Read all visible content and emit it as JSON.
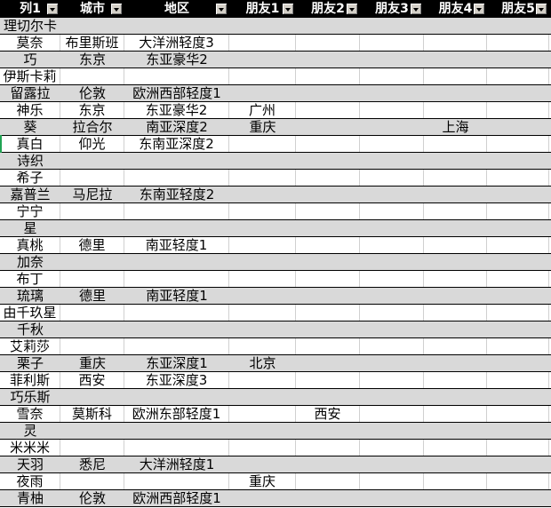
{
  "table": {
    "columns": [
      {
        "label": "列1"
      },
      {
        "label": "城市"
      },
      {
        "label": "地区"
      },
      {
        "label": "朋友1"
      },
      {
        "label": "朋友2"
      },
      {
        "label": "朋友3"
      },
      {
        "label": "朋友4"
      },
      {
        "label": "朋友5"
      }
    ],
    "rows": [
      {
        "cells": [
          "理切尔卡",
          "",
          "",
          "",
          "",
          "",
          "",
          ""
        ]
      },
      {
        "cells": [
          "莫奈",
          "布里斯班",
          "大洋洲轻度3",
          "",
          "",
          "",
          "",
          ""
        ]
      },
      {
        "cells": [
          "巧",
          "东京",
          "东亚豪华2",
          "",
          "",
          "",
          "",
          ""
        ]
      },
      {
        "cells": [
          "伊斯卡莉",
          "",
          "",
          "",
          "",
          "",
          "",
          ""
        ]
      },
      {
        "cells": [
          "留露拉",
          "伦敦",
          "欧洲西部轻度1",
          "",
          "",
          "",
          "",
          ""
        ]
      },
      {
        "cells": [
          "神乐",
          "东京",
          "东亚豪华2",
          "广州",
          "",
          "",
          "",
          ""
        ]
      },
      {
        "cells": [
          "葵",
          "拉合尔",
          "南亚深度2",
          "重庆",
          "",
          "",
          "上海",
          ""
        ]
      },
      {
        "cells": [
          "真白",
          "仰光",
          "东南亚深度2",
          "",
          "",
          "",
          "",
          ""
        ]
      },
      {
        "cells": [
          "诗织",
          "",
          "",
          "",
          "",
          "",
          "",
          ""
        ]
      },
      {
        "cells": [
          "希子",
          "",
          "",
          "",
          "",
          "",
          "",
          ""
        ]
      },
      {
        "cells": [
          "嘉普兰",
          "马尼拉",
          "东南亚轻度2",
          "",
          "",
          "",
          "",
          ""
        ]
      },
      {
        "cells": [
          "宁宁",
          "",
          "",
          "",
          "",
          "",
          "",
          ""
        ]
      },
      {
        "cells": [
          "星",
          "",
          "",
          "",
          "",
          "",
          "",
          ""
        ]
      },
      {
        "cells": [
          "真桃",
          "德里",
          "南亚轻度1",
          "",
          "",
          "",
          "",
          ""
        ]
      },
      {
        "cells": [
          "加奈",
          "",
          "",
          "",
          "",
          "",
          "",
          ""
        ]
      },
      {
        "cells": [
          "布丁",
          "",
          "",
          "",
          "",
          "",
          "",
          ""
        ]
      },
      {
        "cells": [
          "琉璃",
          "德里",
          "南亚轻度1",
          "",
          "",
          "",
          "",
          ""
        ]
      },
      {
        "cells": [
          "由千玖星",
          "",
          "",
          "",
          "",
          "",
          "",
          ""
        ]
      },
      {
        "cells": [
          "千秋",
          "",
          "",
          "",
          "",
          "",
          "",
          ""
        ]
      },
      {
        "cells": [
          "艾莉莎",
          "",
          "",
          "",
          "",
          "",
          "",
          ""
        ]
      },
      {
        "cells": [
          "栗子",
          "重庆",
          "东亚深度1",
          "北京",
          "",
          "",
          "",
          ""
        ]
      },
      {
        "cells": [
          "菲利斯",
          "西安",
          "东亚深度3",
          "",
          "",
          "",
          "",
          ""
        ]
      },
      {
        "cells": [
          "巧乐斯",
          "",
          "",
          "",
          "",
          "",
          "",
          ""
        ]
      },
      {
        "cells": [
          "雪奈",
          "莫斯科",
          "欧洲东部轻度1",
          "",
          "西安",
          "",
          "",
          ""
        ]
      },
      {
        "cells": [
          "灵",
          "",
          "",
          "",
          "",
          "",
          "",
          ""
        ]
      },
      {
        "cells": [
          "米米米",
          "",
          "",
          "",
          "",
          "",
          "",
          ""
        ]
      },
      {
        "cells": [
          "天羽",
          "悉尼",
          "大洋洲轻度1",
          "",
          "",
          "",
          "",
          ""
        ]
      },
      {
        "cells": [
          "夜雨",
          "",
          "",
          "重庆",
          "",
          "",
          "",
          ""
        ]
      },
      {
        "cells": [
          "青柚",
          "伦敦",
          "欧洲西部轻度1",
          "",
          "",
          "",
          "",
          ""
        ]
      }
    ],
    "active_row_index": 7
  },
  "colors": {
    "header_bg": "#000000",
    "header_text": "#ffffff",
    "band_fill": "#d9d9d9",
    "row_fill": "#ffffff",
    "grid_line": "#d0d0d0",
    "row_separator": "#000000",
    "filter_button_bg": "#d4d0c8",
    "active_cell_indicator": "#21a353"
  }
}
